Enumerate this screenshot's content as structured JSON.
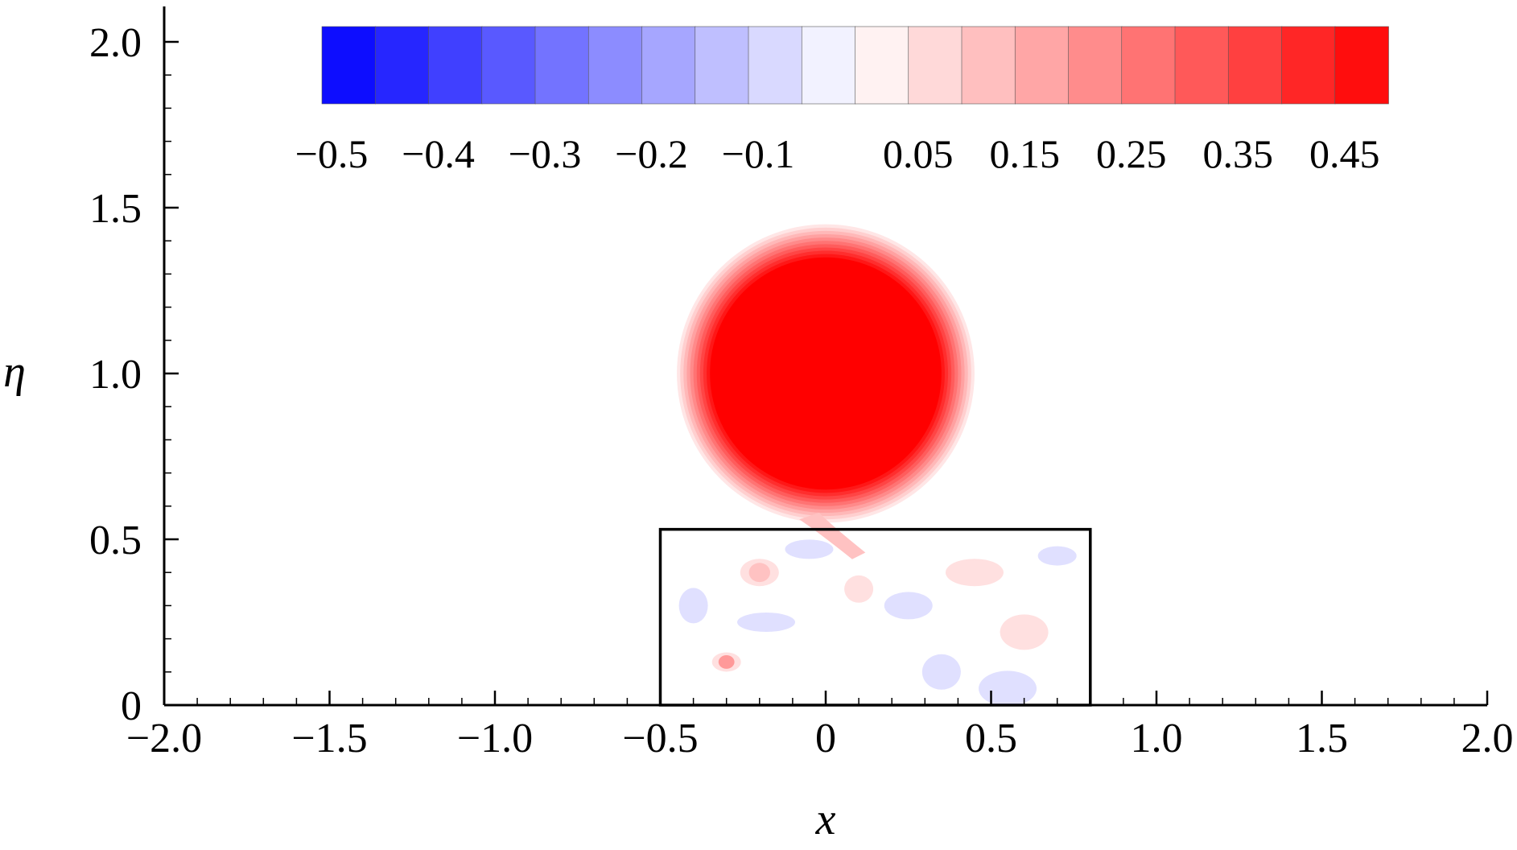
{
  "chart_data": {
    "type": "heatmap",
    "title": "",
    "xlabel": "x",
    "ylabel": "η",
    "xlim": [
      -2.0,
      2.0
    ],
    "ylim": [
      0,
      2.0
    ],
    "x_ticks": [
      {
        "value": -2.0,
        "label": "−2.0"
      },
      {
        "value": -1.5,
        "label": "−1.5"
      },
      {
        "value": -1.0,
        "label": "−1.0"
      },
      {
        "value": -0.5,
        "label": "−0.5"
      },
      {
        "value": 0,
        "label": "0"
      },
      {
        "value": 0.5,
        "label": "0.5"
      },
      {
        "value": 1.0,
        "label": "1.0"
      },
      {
        "value": 1.5,
        "label": "1.5"
      },
      {
        "value": 2.0,
        "label": "2.0"
      }
    ],
    "y_ticks": [
      {
        "value": 0,
        "label": "0"
      },
      {
        "value": 0.5,
        "label": "0.5"
      },
      {
        "value": 1.0,
        "label": "1.0"
      },
      {
        "value": 1.5,
        "label": "1.5"
      },
      {
        "value": 2.0,
        "label": "2.0"
      }
    ],
    "colorbar": {
      "position": "top",
      "range": [
        -0.5,
        0.5
      ],
      "levels": 20,
      "min_color": "#0000ff",
      "mid_color": "#ffffff",
      "max_color": "#ff0000",
      "labels": [
        {
          "value": -0.5,
          "label": "−0.5"
        },
        {
          "value": -0.4,
          "label": "−0.4"
        },
        {
          "value": -0.3,
          "label": "−0.3"
        },
        {
          "value": -0.2,
          "label": "−0.2"
        },
        {
          "value": -0.1,
          "label": "−0.1"
        },
        {
          "value": 0.05,
          "label": "0.05"
        },
        {
          "value": 0.15,
          "label": "0.15"
        },
        {
          "value": 0.25,
          "label": "0.25"
        },
        {
          "value": 0.35,
          "label": "0.35"
        },
        {
          "value": 0.45,
          "label": "0.45"
        }
      ]
    },
    "features": {
      "blob": {
        "cx": 0.0,
        "cy": 1.0,
        "core_radius": 0.35,
        "halo_radius": 0.45,
        "peak_value": 0.5
      },
      "rectangle": {
        "x0": -0.5,
        "x1": 0.8,
        "y0": 0.0,
        "y1": 0.53,
        "stroke": "#000000"
      },
      "noise_spots": [
        {
          "x": -0.3,
          "y": 0.13,
          "value": 0.2
        },
        {
          "x": -0.2,
          "y": 0.4,
          "value": 0.12
        },
        {
          "x": 0.6,
          "y": 0.22,
          "value": 0.08
        },
        {
          "x": -0.18,
          "y": 0.25,
          "value": -0.06
        },
        {
          "x": 0.1,
          "y": 0.35,
          "value": 0.05
        },
        {
          "x": 0.35,
          "y": 0.1,
          "value": -0.06
        },
        {
          "x": -0.05,
          "y": 0.47,
          "value": -0.05
        },
        {
          "x": 0.45,
          "y": 0.4,
          "value": 0.06
        },
        {
          "x": -0.4,
          "y": 0.3,
          "value": -0.04
        },
        {
          "x": 0.7,
          "y": 0.45,
          "value": -0.05
        },
        {
          "x": 0.25,
          "y": 0.3,
          "value": -0.05
        },
        {
          "x": 0.55,
          "y": 0.05,
          "value": -0.05
        }
      ]
    }
  }
}
